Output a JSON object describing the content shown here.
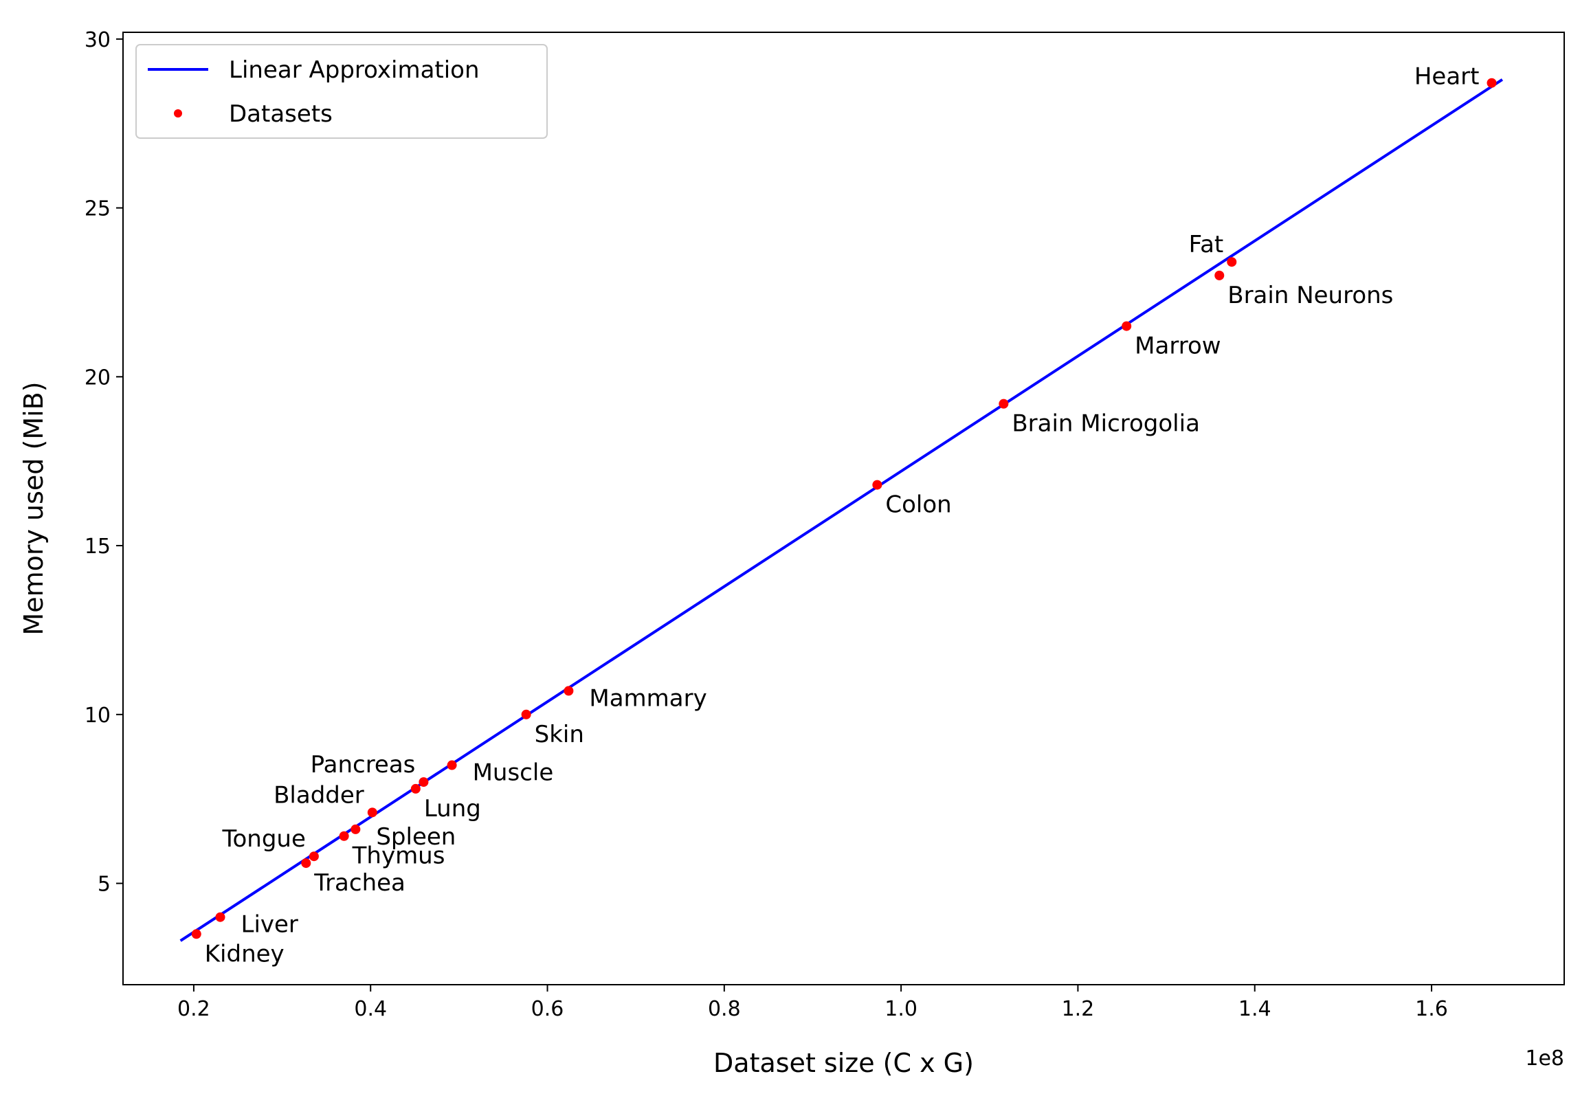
{
  "chart_data": {
    "type": "scatter",
    "xlabel": "Dataset size (C x G)",
    "ylabel": "Memory used (MiB)",
    "x_exponent_label": "1e8",
    "x_scale_factor": 100000000,
    "xlim": [
      12000000,
      175000000
    ],
    "ylim": [
      2,
      30.2
    ],
    "x_ticks": [
      0.2,
      0.4,
      0.6,
      0.8,
      1.0,
      1.2,
      1.4,
      1.6
    ],
    "x_tick_labels": [
      "0.2",
      "0.4",
      "0.6",
      "0.8",
      "1.0",
      "1.2",
      "1.4",
      "1.6"
    ],
    "y_ticks": [
      5,
      10,
      15,
      20,
      25,
      30
    ],
    "y_tick_labels": [
      "5",
      "10",
      "15",
      "20",
      "25",
      "30"
    ],
    "grid": false,
    "legend": {
      "placement": "top-left",
      "entries": [
        {
          "label": "Linear Approximation",
          "kind": "line",
          "color": "#0000ff"
        },
        {
          "label": "Datasets",
          "kind": "marker",
          "color": "#ff0000"
        }
      ]
    },
    "series": [
      {
        "name": "Linear Approximation",
        "kind": "line",
        "color": "#0000ff",
        "x": [
          18500000,
          168000000
        ],
        "y": [
          3.3,
          28.8
        ]
      },
      {
        "name": "Datasets",
        "kind": "scatter",
        "color": "#ff0000",
        "points": [
          {
            "label": "Kidney",
            "x": 20300000,
            "y": 3.5,
            "label_pos": "below-right"
          },
          {
            "label": "Liver",
            "x": 23000000,
            "y": 4.0,
            "label_pos": "right"
          },
          {
            "label": "Trachea",
            "x": 32700000,
            "y": 5.6,
            "label_pos": "below-right"
          },
          {
            "label": "Tongue",
            "x": 33600000,
            "y": 5.8,
            "label_pos": "above-left"
          },
          {
            "label": "Thymus",
            "x": 37000000,
            "y": 6.4,
            "label_pos": "below-right"
          },
          {
            "label": "Spleen",
            "x": 38300000,
            "y": 6.6,
            "label_pos": "right"
          },
          {
            "label": "Bladder",
            "x": 40200000,
            "y": 7.1,
            "label_pos": "above-left"
          },
          {
            "label": "Lung",
            "x": 45100000,
            "y": 7.8,
            "label_pos": "below-right"
          },
          {
            "label": "Pancreas",
            "x": 46000000,
            "y": 8.0,
            "label_pos": "above-left"
          },
          {
            "label": "Muscle",
            "x": 49200000,
            "y": 8.5,
            "label_pos": "right"
          },
          {
            "label": "Skin",
            "x": 57600000,
            "y": 10.0,
            "label_pos": "below-right"
          },
          {
            "label": "Mammary",
            "x": 62400000,
            "y": 10.7,
            "label_pos": "right"
          },
          {
            "label": "Colon",
            "x": 97300000,
            "y": 16.8,
            "label_pos": "below-right"
          },
          {
            "label": "Brain Microgolia",
            "x": 111600000,
            "y": 19.2,
            "label_pos": "below-right"
          },
          {
            "label": "Marrow",
            "x": 125500000,
            "y": 21.5,
            "label_pos": "below-right"
          },
          {
            "label": "Brain Neurons",
            "x": 136000000,
            "y": 23.0,
            "label_pos": "below-right"
          },
          {
            "label": "Fat",
            "x": 137400000,
            "y": 23.4,
            "label_pos": "above-left"
          },
          {
            "label": "Heart",
            "x": 166800000,
            "y": 28.7,
            "label_pos": "left"
          }
        ]
      }
    ]
  }
}
